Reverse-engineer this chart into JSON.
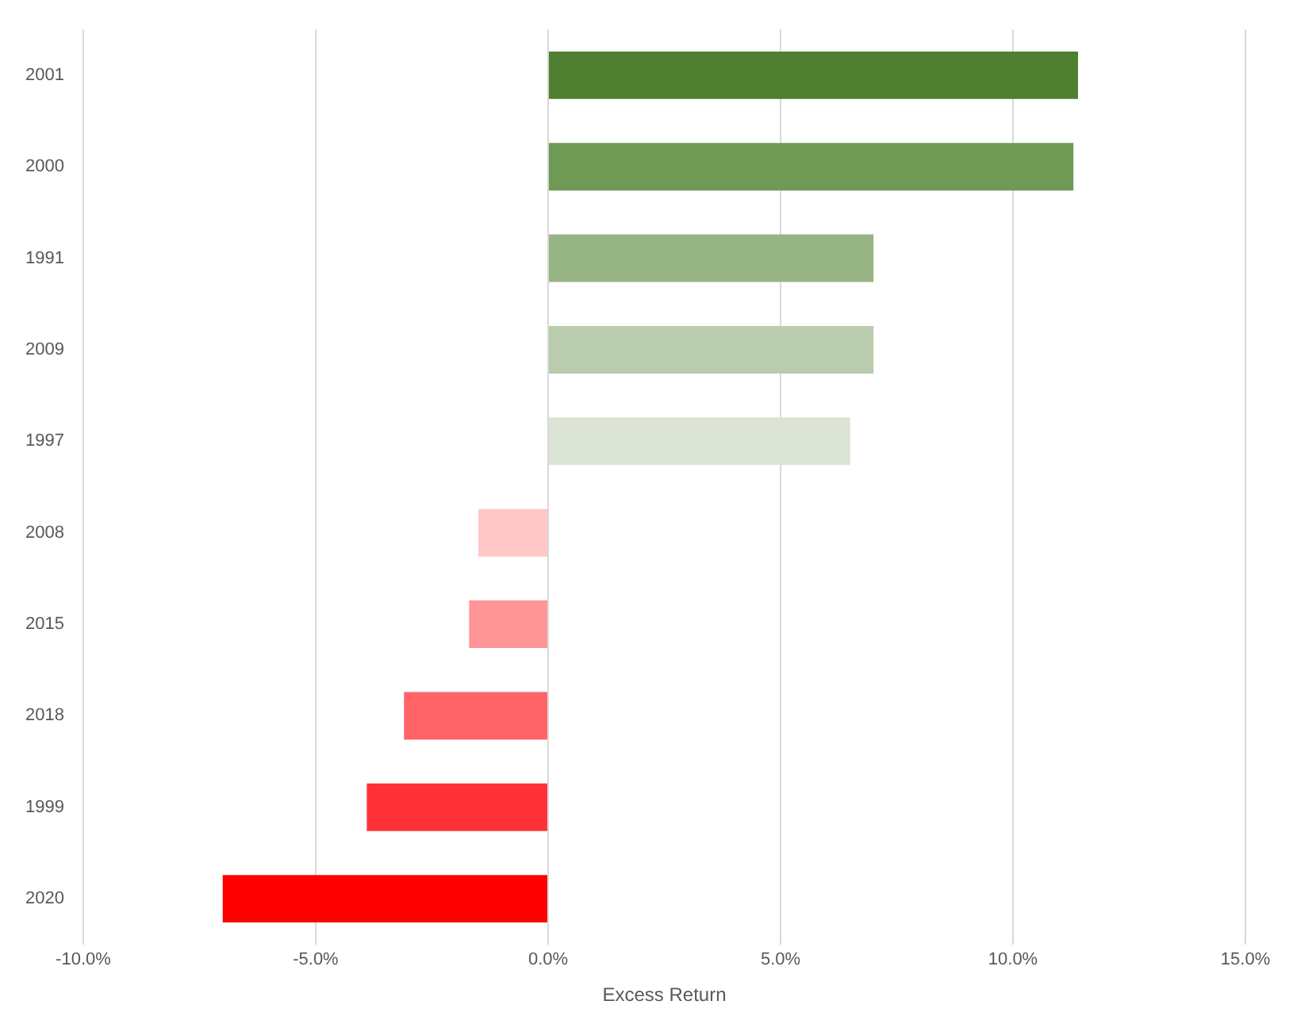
{
  "chart_data": {
    "type": "bar",
    "orientation": "horizontal",
    "xlabel": "Excess Return",
    "categories": [
      "2001",
      "2000",
      "1991",
      "2009",
      "1997",
      "2008",
      "2015",
      "2018",
      "1999",
      "2020"
    ],
    "values": [
      11.4,
      11.3,
      7.0,
      7.0,
      6.5,
      -1.5,
      -1.7,
      -3.1,
      -3.9,
      -7.0
    ],
    "colors": [
      "#4f7f30",
      "#6f9a55",
      "#97b485",
      "#b9ccad",
      "#dce5d5",
      "#ffc7c8",
      "#ff9597",
      "#ff6367",
      "#ff3136",
      "#ff0000"
    ],
    "xlim": [
      -10,
      15
    ],
    "xticks": [
      {
        "value": -10,
        "label": "-10.0%"
      },
      {
        "value": -5,
        "label": "-5.0%"
      },
      {
        "value": 0,
        "label": "0.0%"
      },
      {
        "value": 5,
        "label": "5.0%"
      },
      {
        "value": 10,
        "label": "10.0%"
      },
      {
        "value": 15,
        "label": "15.0%"
      }
    ],
    "grid": "x",
    "legend": false
  }
}
